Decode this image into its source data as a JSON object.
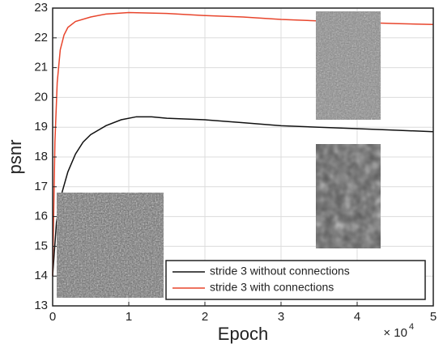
{
  "chart_data": {
    "type": "line",
    "x_label": "Epoch",
    "y_label": "psnr",
    "x_scale_label": "× 10",
    "x_scale_exponent": "4",
    "xlim": [
      0,
      5
    ],
    "xticks": [
      0,
      1,
      2,
      3,
      4,
      5
    ],
    "ylim": [
      13,
      23
    ],
    "yticks": [
      13,
      14,
      15,
      16,
      17,
      18,
      19,
      20,
      21,
      22,
      23
    ],
    "grid": true,
    "legend": "lower right",
    "series": [
      {
        "name": "stride 3 without connections",
        "color": "#111111",
        "x": [
          0,
          0.05,
          0.1,
          0.2,
          0.3,
          0.4,
          0.5,
          0.7,
          0.9,
          1.1,
          1.3,
          1.5,
          2,
          2.5,
          3,
          3.5,
          4,
          4.5,
          5
        ],
        "values": [
          14,
          15.8,
          16.6,
          17.5,
          18.1,
          18.5,
          18.75,
          19.05,
          19.25,
          19.35,
          19.35,
          19.3,
          19.25,
          19.15,
          19.05,
          19.0,
          18.95,
          18.9,
          18.85
        ]
      },
      {
        "name": "stride 3 with connections",
        "color": "#e8452c",
        "x": [
          0,
          0.03,
          0.06,
          0.1,
          0.15,
          0.2,
          0.3,
          0.5,
          0.7,
          1,
          1.5,
          2,
          2.5,
          3,
          3.5,
          4,
          4.5,
          5
        ],
        "values": [
          14,
          18.5,
          20.5,
          21.6,
          22.1,
          22.35,
          22.55,
          22.7,
          22.8,
          22.85,
          22.82,
          22.75,
          22.7,
          22.62,
          22.57,
          22.52,
          22.48,
          22.45
        ]
      }
    ]
  }
}
